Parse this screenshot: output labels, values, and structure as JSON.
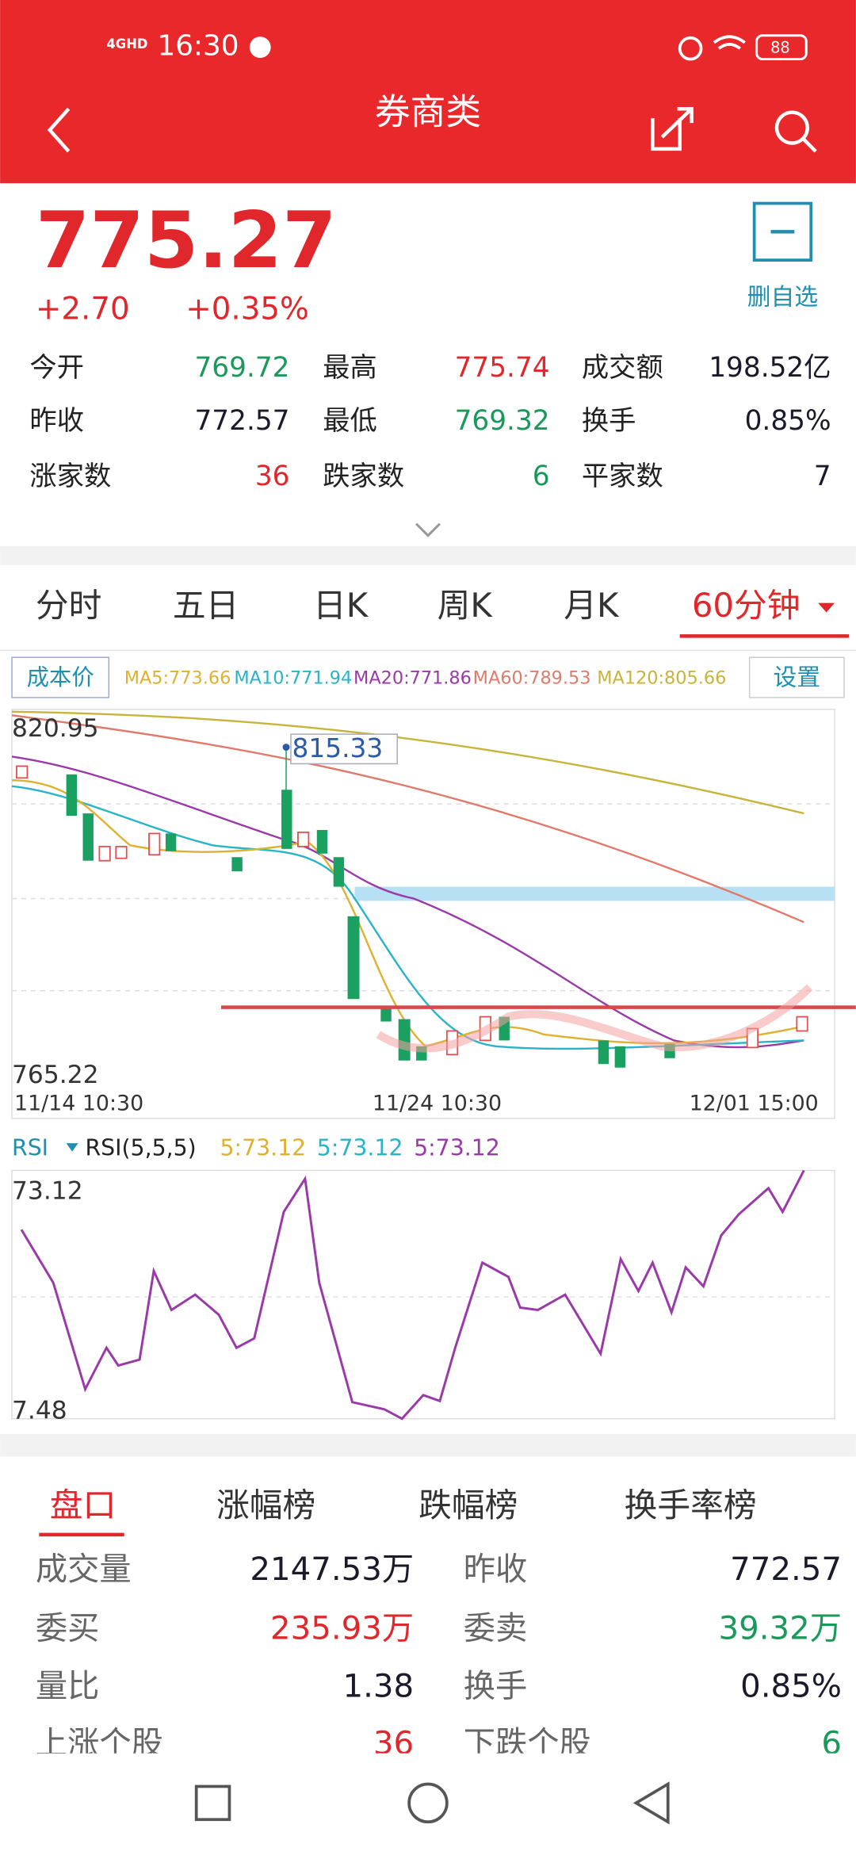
{
  "status": {
    "network": "4GHD",
    "time": "16:30",
    "battery": "88"
  },
  "header": {
    "title": "券商类"
  },
  "quote": {
    "price": "775.27",
    "change": "+2.70",
    "percent": "+0.35%",
    "watch": "删自选"
  },
  "stats": [
    [
      "今开",
      "769.72"
    ],
    [
      "最高",
      "775.74"
    ],
    [
      "成交额",
      "198.52亿"
    ],
    [
      "昨收",
      "772.57"
    ],
    [
      "最低",
      "769.32"
    ],
    [
      "换手",
      "0.85%"
    ],
    [
      "涨家数",
      "36"
    ],
    [
      "跌家数",
      "6"
    ],
    [
      "平家数",
      "7"
    ]
  ],
  "tabs": [
    "分时",
    "五日",
    "日K",
    "周K",
    "月K",
    "60分钟"
  ],
  "chart": {
    "cost": "成本价",
    "ma": [
      "MA5:773.66",
      "MA10:771.94",
      "MA20:771.86",
      "MA60:789.53",
      "MA120:805.66"
    ],
    "settings": "设置",
    "y_max": "820.95",
    "y_min": "765.22",
    "high": "815.33",
    "x_labels": [
      "11/14 10:30",
      "11/24 10:30",
      "12/01 15:00"
    ]
  },
  "rsi": {
    "name": "RSI",
    "params": "RSI(5,5,5)",
    "values": [
      "5:73.12",
      "5:73.12",
      "5:73.12"
    ],
    "max": "73.12",
    "min": "7.48"
  },
  "book_tabs": [
    "盘口",
    "涨幅榜",
    "跌幅榜",
    "换手率榜"
  ],
  "book": [
    [
      "成交量",
      "2147.53万",
      "昨收",
      "772.57"
    ],
    [
      "委买",
      "235.93万",
      "委卖",
      "39.32万"
    ],
    [
      "量比",
      "1.38",
      "换手",
      "0.85%"
    ],
    [
      "上涨个股",
      "36",
      "下跌个股",
      "6"
    ]
  ]
}
